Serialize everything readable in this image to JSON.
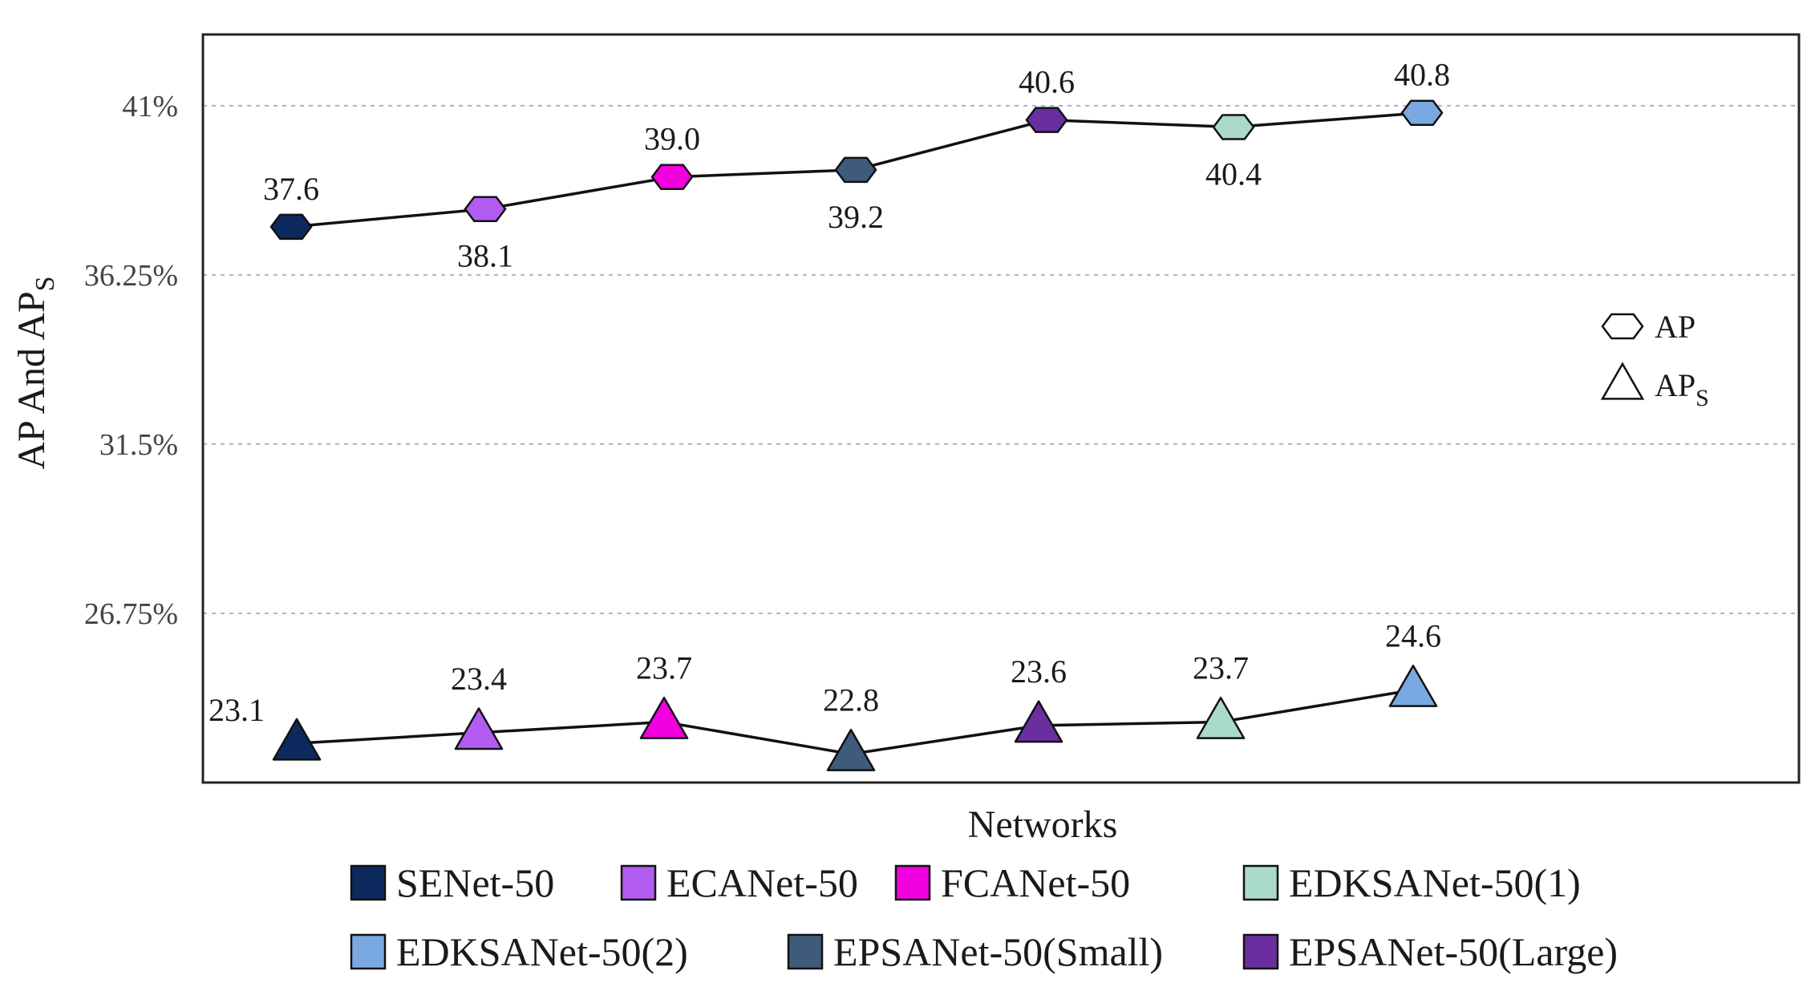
{
  "chart_data": {
    "type": "line",
    "xlabel": "Networks",
    "ylabel": "AP And AP",
    "ylabel_sub": "S",
    "y_ticks": [
      {
        "value": 26.75,
        "label": "26.75%"
      },
      {
        "value": 31.5,
        "label": "31.5%"
      },
      {
        "value": 36.25,
        "label": "36.25%"
      },
      {
        "value": 41,
        "label": "41%"
      }
    ],
    "ylim": [
      22.0,
      43.0
    ],
    "grid": "horizontal-dashed",
    "categories": [
      "SENet-50",
      "ECANet-50",
      "FCANet-50",
      "EPSANet-50(Small)",
      "EPSANet-50(Large)",
      "EDKSANet-50(1)",
      "EDKSANet-50(2)"
    ],
    "colors": {
      "SENet-50": "#0d2a5e",
      "ECANet-50": "#b25cf2",
      "FCANet-50": "#f200e0",
      "EPSANet-50(Small)": "#3f5b7c",
      "EPSANet-50(Large)": "#6a2ea0",
      "EDKSANet-50(1)": "#a9dbc8",
      "EDKSANet-50(2)": "#7aa8e0"
    },
    "series": [
      {
        "name": "AP",
        "marker": "diamond",
        "values": [
          37.6,
          38.1,
          39.0,
          39.2,
          40.6,
          40.4,
          40.8
        ],
        "labels": [
          "37.6",
          "38.1",
          "39.0",
          "39.2",
          "40.6",
          "40.4",
          "40.8"
        ],
        "label_pos": [
          "above",
          "below",
          "above",
          "below",
          "above",
          "below",
          "above"
        ]
      },
      {
        "name": "AP",
        "name_sub": "S",
        "marker": "triangle",
        "values": [
          23.1,
          23.4,
          23.7,
          22.8,
          23.6,
          23.7,
          24.6
        ],
        "labels": [
          "23.1",
          "23.4",
          "23.7",
          "22.8",
          "23.6",
          "23.7",
          "24.6"
        ],
        "label_pos": [
          "left",
          "above",
          "above",
          "above",
          "above",
          "above",
          "above"
        ]
      }
    ],
    "inner_legend": [
      {
        "marker": "diamond",
        "label": "AP",
        "sub": ""
      },
      {
        "marker": "triangle",
        "label": "AP",
        "sub": "S"
      }
    ],
    "legend": [
      "SENet-50",
      "ECANet-50",
      "FCANet-50",
      "EDKSANet-50(1)",
      "EDKSANet-50(2)",
      "EPSANet-50(Small)",
      "EPSANet-50(Large)"
    ]
  }
}
